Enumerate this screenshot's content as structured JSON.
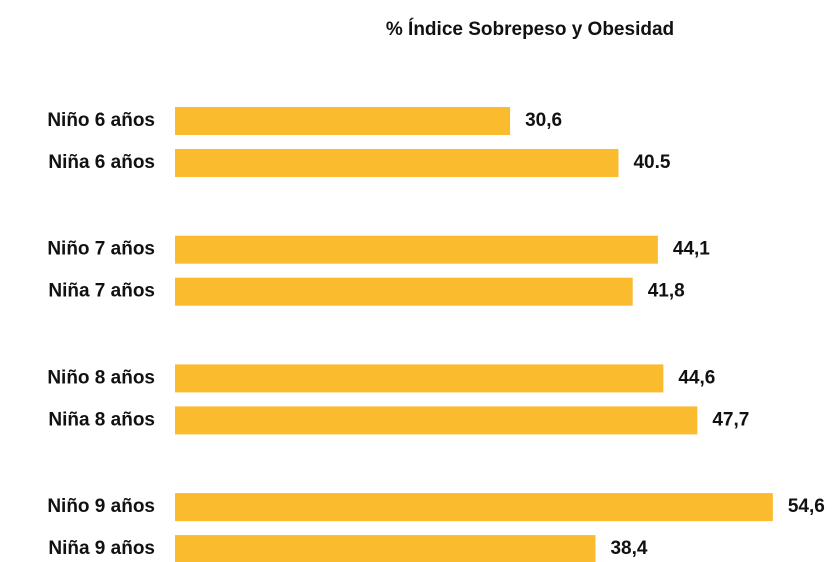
{
  "chart_data": {
    "type": "bar",
    "orientation": "horizontal",
    "title": "% Índice Sobrepeso y Obesidad",
    "categories": [
      "Niño 6 años",
      "Niña 6 años",
      "Niño 7 años",
      "Niña 7 años",
      "Niño 8 años",
      "Niña 8 años",
      "Niño 9 años",
      "Niña 9 años"
    ],
    "values": [
      30.6,
      40.5,
      44.1,
      41.8,
      44.6,
      47.7,
      54.6,
      38.4
    ],
    "value_labels": [
      "30,6",
      "40.5",
      "44,1",
      "41,8",
      "44,6",
      "47,7",
      "54,6",
      "38,4"
    ],
    "color": "#fbbb2e"
  }
}
